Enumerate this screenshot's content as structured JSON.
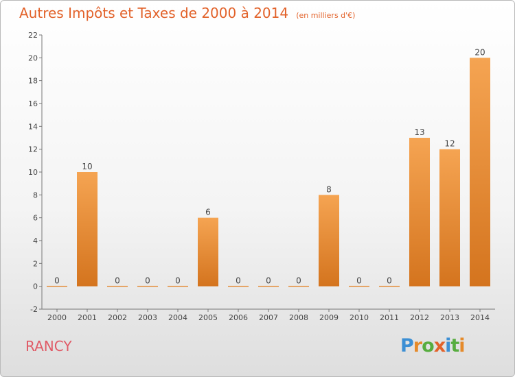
{
  "header": {
    "title": "Autres Impôts et Taxes de 2000 à 2014",
    "subtitle": "(en milliers d'€)"
  },
  "footer": {
    "commune": "RANCY",
    "logo_text": "Proxiti",
    "logo_letters": [
      {
        "char": "P",
        "color": "#3c8fd4"
      },
      {
        "char": "r",
        "color": "#e58a2a"
      },
      {
        "char": "o",
        "color": "#57ad3f"
      },
      {
        "char": "x",
        "color": "#e2622a"
      },
      {
        "char": "i",
        "color": "#3c8fd4"
      },
      {
        "char": "t",
        "color": "#57ad3f"
      },
      {
        "char": "i",
        "color": "#e58a2a"
      }
    ]
  },
  "colors": {
    "bar_top": "#f5a452",
    "bar_bottom": "#d4741e",
    "title": "#e2622a",
    "commune": "#e05a66"
  },
  "chart_data": {
    "type": "bar",
    "categories": [
      "2000",
      "2001",
      "2002",
      "2003",
      "2004",
      "2005",
      "2006",
      "2007",
      "2008",
      "2009",
      "2010",
      "2011",
      "2012",
      "2013",
      "2014"
    ],
    "values": [
      0,
      10,
      0,
      0,
      0,
      6,
      0,
      0,
      0,
      8,
      0,
      0,
      13,
      12,
      20
    ],
    "data_labels": [
      "0",
      "10",
      "0",
      "0",
      "0",
      "6",
      "0",
      "0",
      "0",
      "8",
      "0",
      "0",
      "13",
      "12",
      "20"
    ],
    "title": "Autres Impôts et Taxes de 2000 à 2014",
    "ylim": [
      -2,
      22
    ],
    "yticks": [
      -2,
      0,
      2,
      4,
      6,
      8,
      10,
      12,
      14,
      16,
      18,
      20,
      22
    ],
    "grid": false,
    "legend": "none"
  }
}
